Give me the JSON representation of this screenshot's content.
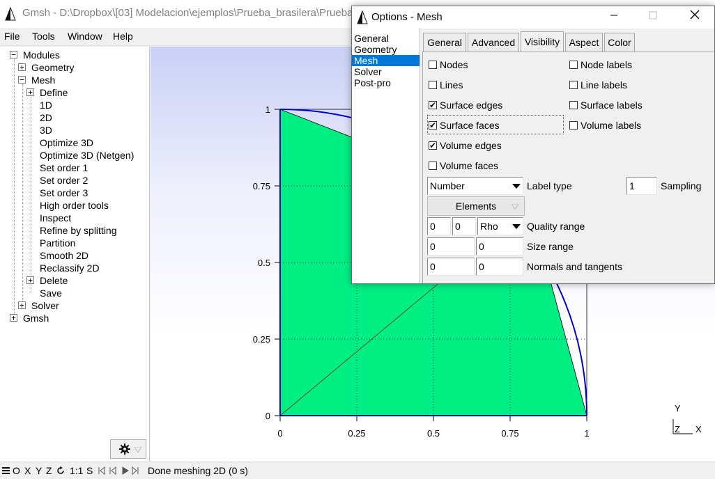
{
  "window": {
    "title": "Gmsh - D:\\Dropbox\\[03] Modelacion\\ejemplos\\Prueba_brasilera\\Prueba"
  },
  "menu": {
    "items": [
      {
        "label": "File"
      },
      {
        "label": "Tools"
      },
      {
        "label": "Window"
      },
      {
        "label": "Help"
      }
    ]
  },
  "tree": {
    "root": "Modules",
    "items": [
      {
        "label": "Geometry",
        "toggle": "+"
      },
      {
        "label": "Mesh",
        "toggle": "−"
      },
      {
        "label": "Define",
        "toggle": "+"
      },
      {
        "label": "1D"
      },
      {
        "label": "2D"
      },
      {
        "label": "3D"
      },
      {
        "label": "Optimize 3D"
      },
      {
        "label": "Optimize 3D (Netgen)"
      },
      {
        "label": "Set order 1"
      },
      {
        "label": "Set order 2"
      },
      {
        "label": "Set order 3"
      },
      {
        "label": "High order tools"
      },
      {
        "label": "Inspect"
      },
      {
        "label": "Refine by splitting"
      },
      {
        "label": "Partition"
      },
      {
        "label": "Smooth 2D"
      },
      {
        "label": "Reclassify 2D"
      },
      {
        "label": "Delete",
        "toggle": "+"
      },
      {
        "label": "Save"
      },
      {
        "label": "Solver",
        "toggle": "+"
      },
      {
        "label": "Gmsh",
        "toggle": "+"
      }
    ],
    "root_toggle": "−",
    "gear_icon": "gear-icon"
  },
  "graphics": {
    "ticks_x": [
      "0",
      "0.25",
      "0.5",
      "0.75",
      "1"
    ],
    "ticks_y": [
      "0",
      "0.25",
      "0.5",
      "0.75",
      "1"
    ],
    "axis_y": "Y",
    "axis_z": "Z",
    "axis_x": "X",
    "face_color": "#00ef84",
    "curve_color": "#0000c8"
  },
  "statusbar": {
    "buttons": [
      "O",
      "X",
      "Y",
      "Z",
      "1:1",
      "S"
    ],
    "message": "Done meshing 2D (0 s)"
  },
  "options": {
    "title": "Options - Mesh",
    "categories": [
      "General",
      "Geometry",
      "Mesh",
      "Solver",
      "Post-pro"
    ],
    "selected_category": "Mesh",
    "tabs": [
      "General",
      "Advanced",
      "Visibility",
      "Aspect",
      "Color"
    ],
    "active_tab": "Visibility",
    "checkboxes_left": [
      {
        "label": "Nodes",
        "checked": false
      },
      {
        "label": "Lines",
        "checked": false
      },
      {
        "label": "Surface edges",
        "checked": true
      },
      {
        "label": "Surface faces",
        "checked": true
      },
      {
        "label": "Volume edges",
        "checked": true
      },
      {
        "label": "Volume faces",
        "checked": false
      }
    ],
    "checkboxes_right": [
      {
        "label": "Node labels",
        "checked": false
      },
      {
        "label": "Line labels",
        "checked": false
      },
      {
        "label": "Surface labels",
        "checked": false
      },
      {
        "label": "Volume labels",
        "checked": false
      }
    ],
    "label_type": {
      "value": "Number",
      "label": "Label type"
    },
    "sampling": {
      "value": "1",
      "label": "Sampling"
    },
    "elements_button": "Elements",
    "quality_range": {
      "min": "0",
      "max": "0",
      "measure": "Rho",
      "label": "Quality range"
    },
    "size_range": {
      "min": "0",
      "max": "0",
      "label": "Size range"
    },
    "normals": {
      "normals": "0",
      "tangents": "0",
      "label": "Normals and tangents"
    }
  }
}
